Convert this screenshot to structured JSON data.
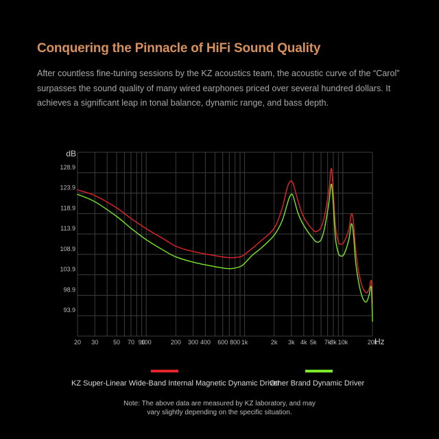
{
  "heading": {
    "title": "Conquering the Pinnacle of HiFi Sound Quality",
    "description": "After countless fine-tuning sessions by the KZ acoustics team, the acoustic curve of the “Carol” surpasses the sound quality of many wired earphones priced over several hundred dollars. It achieves a significant leap in tonal balance, dynamic range, and bass depth."
  },
  "legend": {
    "items": [
      {
        "label": "KZ Super-Linear Wide-Band Internal Magnetic Dynamic Driver",
        "color": "#e3242b"
      },
      {
        "label": "Other Brand Dynamic Driver",
        "color": "#7be82b"
      }
    ]
  },
  "note": {
    "line1": "Note: The above data are measured by KZ laboratory, and may",
    "line2": "vary slightly depending on the specific situation."
  },
  "chart_data": {
    "type": "line",
    "xlabel": "Hz",
    "ylabel": "dB",
    "xscale": "log",
    "xlim": [
      20,
      20000
    ],
    "ylim": [
      88.9,
      133.9
    ],
    "grid": true,
    "legend_position": "bottom",
    "x_ticks": [
      {
        "value": 20,
        "label": "20"
      },
      {
        "value": 30,
        "label": "30"
      },
      {
        "value": 50,
        "label": "50"
      },
      {
        "value": 70,
        "label": "70"
      },
      {
        "value": 90,
        "label": "90"
      },
      {
        "value": 100,
        "label": "100"
      },
      {
        "value": 200,
        "label": "200"
      },
      {
        "value": 300,
        "label": "300"
      },
      {
        "value": 400,
        "label": "400"
      },
      {
        "value": 600,
        "label": "600"
      },
      {
        "value": 800,
        "label": "800"
      },
      {
        "value": 1000,
        "label": "1k"
      },
      {
        "value": 2000,
        "label": "2k"
      },
      {
        "value": 3000,
        "label": "3k"
      },
      {
        "value": 4000,
        "label": "4k"
      },
      {
        "value": 5000,
        "label": "5k"
      },
      {
        "value": 7000,
        "label": "7k"
      },
      {
        "value": 8000,
        "label": "8k"
      },
      {
        "value": 10000,
        "label": "10k"
      },
      {
        "value": 20000,
        "label": "20k"
      }
    ],
    "x_gridlines": [
      20,
      30,
      40,
      50,
      60,
      70,
      80,
      90,
      100,
      200,
      300,
      400,
      500,
      600,
      700,
      800,
      900,
      1000,
      2000,
      3000,
      4000,
      5000,
      6000,
      7000,
      8000,
      9000,
      10000,
      20000
    ],
    "y_ticks": [
      {
        "value": 128.9,
        "label": "128.9"
      },
      {
        "value": 123.9,
        "label": "123.9"
      },
      {
        "value": 118.9,
        "label": "118.9"
      },
      {
        "value": 113.9,
        "label": "113.9"
      },
      {
        "value": 108.9,
        "label": "108.9"
      },
      {
        "value": 103.9,
        "label": "103.9"
      },
      {
        "value": 98.9,
        "label": "98.9"
      },
      {
        "value": 93.9,
        "label": "93.9"
      }
    ],
    "series": [
      {
        "name": "KZ Super-Linear Wide-Band Internal Magnetic Dynamic Driver",
        "color": "#e3242b",
        "points": [
          [
            20,
            124.7
          ],
          [
            30,
            123.3
          ],
          [
            50,
            120.3
          ],
          [
            70,
            117.7
          ],
          [
            100,
            115.2
          ],
          [
            150,
            112.7
          ],
          [
            200,
            110.9
          ],
          [
            300,
            109.6
          ],
          [
            500,
            108.6
          ],
          [
            700,
            108.1
          ],
          [
            900,
            108.3
          ],
          [
            1000,
            108.9
          ],
          [
            1200,
            110.4
          ],
          [
            1500,
            112.4
          ],
          [
            2000,
            115.3
          ],
          [
            2400,
            120.0
          ],
          [
            2700,
            125.0
          ],
          [
            2900,
            126.7
          ],
          [
            3100,
            126.4
          ],
          [
            3500,
            122.0
          ],
          [
            4000,
            118.0
          ],
          [
            5000,
            114.8
          ],
          [
            5500,
            114.6
          ],
          [
            6000,
            115.5
          ],
          [
            6500,
            118.2
          ],
          [
            7200,
            124.5
          ],
          [
            7600,
            129.9
          ],
          [
            7900,
            126.3
          ],
          [
            8400,
            116.0
          ],
          [
            9000,
            112.0
          ],
          [
            9600,
            111.4
          ],
          [
            10300,
            112.0
          ],
          [
            11500,
            115.0
          ],
          [
            12200,
            118.8
          ],
          [
            12800,
            117.0
          ],
          [
            13500,
            110.0
          ],
          [
            14500,
            104.5
          ],
          [
            15500,
            101.5
          ],
          [
            16500,
            100.0
          ],
          [
            17500,
            99.5
          ],
          [
            18500,
            100.5
          ],
          [
            19200,
            102.3
          ],
          [
            19600,
            102.0
          ],
          [
            20000,
            97.0
          ]
        ]
      },
      {
        "name": "Other Brand Dynamic Driver",
        "color": "#7be82b",
        "points": [
          [
            20,
            123.6
          ],
          [
            30,
            121.8
          ],
          [
            50,
            118.2
          ],
          [
            70,
            115.3
          ],
          [
            100,
            112.5
          ],
          [
            150,
            109.9
          ],
          [
            200,
            108.3
          ],
          [
            300,
            107.0
          ],
          [
            500,
            105.9
          ],
          [
            700,
            105.4
          ],
          [
            900,
            105.9
          ],
          [
            1000,
            106.7
          ],
          [
            1200,
            108.7
          ],
          [
            1500,
            110.6
          ],
          [
            2000,
            113.6
          ],
          [
            2400,
            117.0
          ],
          [
            2700,
            121.0
          ],
          [
            2900,
            123.2
          ],
          [
            3100,
            123.3
          ],
          [
            3500,
            119.0
          ],
          [
            4000,
            116.0
          ],
          [
            5000,
            112.7
          ],
          [
            5500,
            111.9
          ],
          [
            6000,
            112.5
          ],
          [
            6500,
            115.2
          ],
          [
            7200,
            121.5
          ],
          [
            7600,
            126.1
          ],
          [
            7900,
            123.0
          ],
          [
            8400,
            113.0
          ],
          [
            9000,
            109.2
          ],
          [
            9600,
            108.5
          ],
          [
            10300,
            109.0
          ],
          [
            11500,
            112.5
          ],
          [
            12200,
            116.4
          ],
          [
            12800,
            114.0
          ],
          [
            13500,
            107.0
          ],
          [
            14500,
            102.0
          ],
          [
            15500,
            99.0
          ],
          [
            16500,
            97.5
          ],
          [
            17500,
            97.4
          ],
          [
            18500,
            99.0
          ],
          [
            19200,
            101.0
          ],
          [
            19600,
            100.0
          ],
          [
            20000,
            92.5
          ]
        ]
      }
    ]
  }
}
